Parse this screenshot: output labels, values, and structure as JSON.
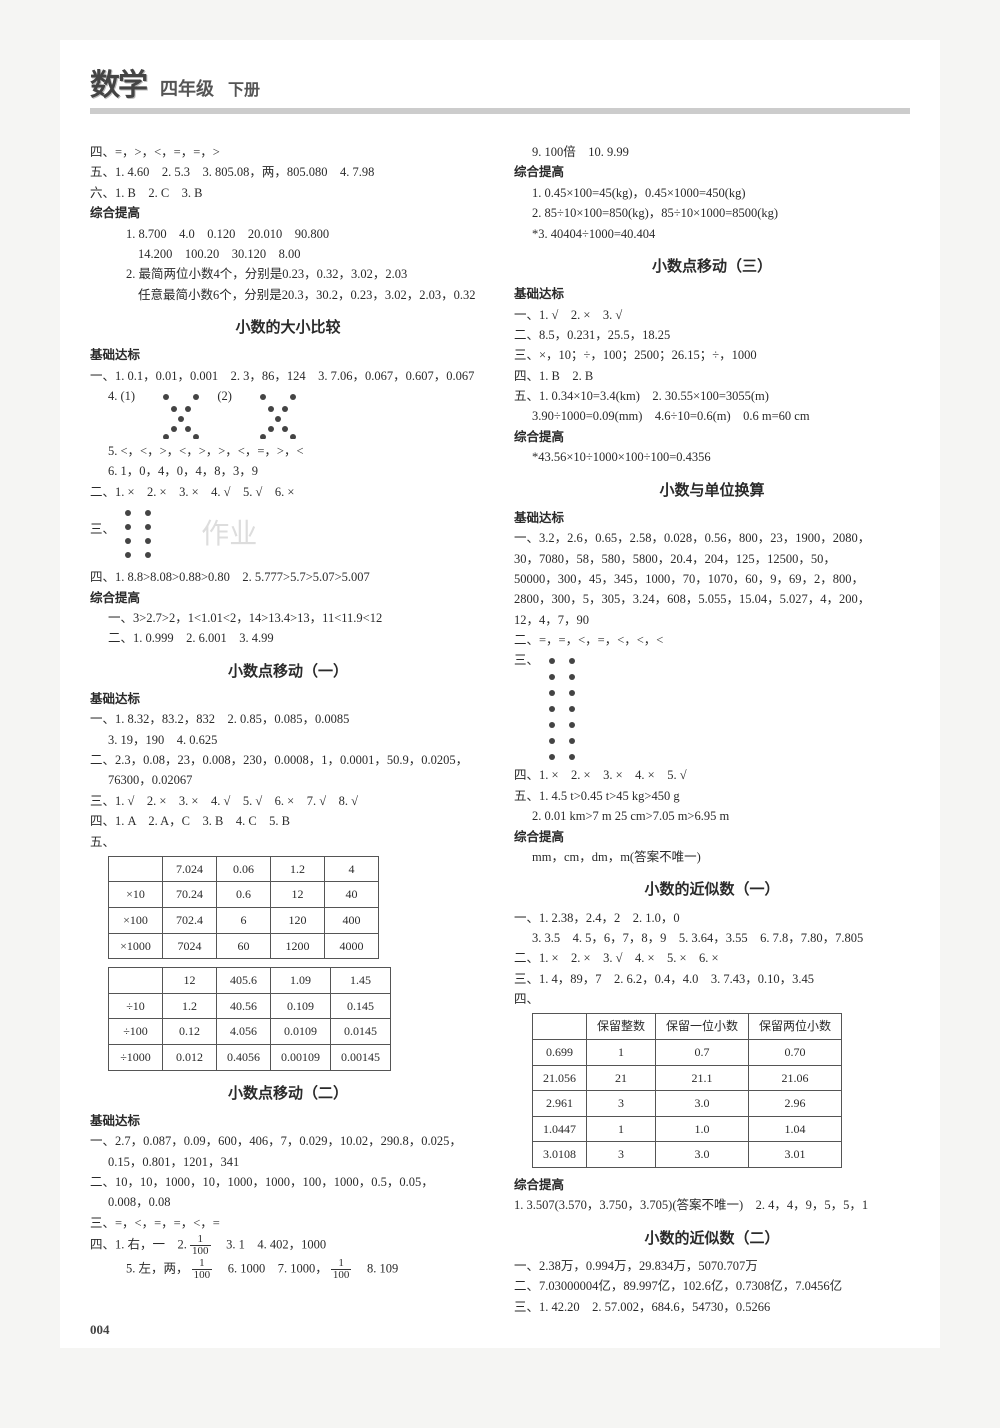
{
  "header": {
    "logo": "数学",
    "grade": "四年级",
    "vol": "下册"
  },
  "page_number": "004",
  "left": {
    "pre": {
      "l1": "四、=，>，<，=，=，>",
      "l2": "五、1. 4.60　2. 5.3　3. 805.08，两，805.080　4. 7.98",
      "l3": "六、1. B　2. C　3. B",
      "zh": "综合提高",
      "l4": "1. 8.700　4.0　0.120　20.010　90.800",
      "l5": "14.200　100.20　30.120　8.00",
      "l6": "2. 最简两位小数4个，分别是0.23，0.32，3.02，2.03",
      "l7": "任意最简小数6个，分别是20.3，30.2，0.23，3.02，2.03，0.32"
    },
    "s1": {
      "title": "小数的大小比较",
      "jc": "基础达标",
      "a1": "一、1. 0.1，0.01，0.001　2. 3，86，124　3. 7.06，0.067，0.607，0.067",
      "a2_prefix": "4. (1)",
      "a2_mid": "(2)",
      "a3": "5. <，<，>，<，>，>，<，=，>，<",
      "a4": "6. 1，0，4，0，4，8，3，9",
      "b1": "二、1. ×　2. ×　3. ×　4. √　5. √　6. ×",
      "c_prefix": "三、",
      "d1": "四、1. 8.8>8.08>0.88>0.80　2. 5.777>5.7>5.07>5.007",
      "zh": "综合提高",
      "e1": "一、3>2.7>2，1<1.01<2，14>13.4>13，11<11.9<12",
      "e2": "二、1. 0.999　2. 6.001　3. 4.99"
    },
    "s2": {
      "title": "小数点移动（一）",
      "jc": "基础达标",
      "a1": "一、1. 8.32，83.2，832　2. 0.85，0.085，0.0085",
      "a2": "3. 19，190　4. 0.625",
      "b1": "二、2.3，0.08，23，0.008，230，0.0008，1，0.0001，50.9，0.0205，",
      "b2": "76300，0.02067",
      "c1": "三、1. √　2. ×　3. ×　4. √　5. √　6. ×　7. √　8. √",
      "d1": "四、1. A　2. A，C　3. B　4. C　5. B",
      "e_prefix": "五、",
      "table_a": {
        "cols": [
          "",
          "7.024",
          "0.06",
          "1.2",
          "4"
        ],
        "rows": [
          [
            "×10",
            "70.24",
            "0.6",
            "12",
            "40"
          ],
          [
            "×100",
            "702.4",
            "6",
            "120",
            "400"
          ],
          [
            "×1000",
            "7024",
            "60",
            "1200",
            "4000"
          ]
        ]
      },
      "table_b": {
        "cols": [
          "",
          "12",
          "405.6",
          "1.09",
          "1.45"
        ],
        "rows": [
          [
            "÷10",
            "1.2",
            "40.56",
            "0.109",
            "0.145"
          ],
          [
            "÷100",
            "0.12",
            "4.056",
            "0.0109",
            "0.0145"
          ],
          [
            "÷1000",
            "0.012",
            "0.4056",
            "0.00109",
            "0.00145"
          ]
        ]
      }
    },
    "s3": {
      "title": "小数点移动（二）",
      "jc": "基础达标",
      "a1": "一、2.7，0.087，0.09，600，406，7，0.029，10.02，290.8，0.025，",
      "a2": "0.15，0.801，1201，341",
      "b1": "二、10，10，1000，10，1000，1000，100，1000，0.5，0.05，",
      "b2": "0.008，0.08",
      "c1": "三、=，<，=，=，<，=",
      "d_prefix": "四、1. 右，一　2. ",
      "d_suffix1": "　3. 1　4. 402，1000",
      "e_prefix": "5. 左，两，",
      "e_mid": "　6. 1000　7. 1000，",
      "e_suffix": "　8. 109"
    }
  },
  "right": {
    "top": {
      "l1": "9. 100倍　10. 9.99",
      "zh": "综合提高",
      "l2": "1. 0.45×100=45(kg)，0.45×1000=450(kg)",
      "l3": "2. 85÷10×100=850(kg)，85÷10×1000=8500(kg)",
      "l4": "*3. 40404÷1000=40.404"
    },
    "s1": {
      "title": "小数点移动（三）",
      "jc": "基础达标",
      "a1": "一、1. √　2. ×　3. √",
      "b1": "二、8.5，0.231，25.5，18.25",
      "c1": "三、×，10；÷，100；2500；26.15；÷，1000",
      "d1": "四、1. B　2. B",
      "e1": "五、1. 0.34×10=3.4(km)　2. 30.55×100=3055(m)",
      "e2": "3.90÷1000=0.09(mm)　4.6÷10=0.6(m)　0.6 m=60 cm",
      "zh": "综合提高",
      "f1": "*43.56×10÷1000×100÷100=0.4356"
    },
    "s2": {
      "title": "小数与单位换算",
      "jc": "基础达标",
      "a1": "一、3.2，2.6，0.65，2.58，0.028，0.56，800，23，1900，2080，",
      "a2": "30，7080，58，580，5800，20.4，204，125，12500，50，",
      "a3": "50000，300，45，345，1000，70，1070，60，9，69，2，800，",
      "a4": "2800，300，5，305，3.24，608，5.055，15.04，5.027，4，200，",
      "a5": "12，4，7，90",
      "b1": "二、=，=，<，=，<，<，<",
      "c_prefix": "三、",
      "d1": "四、1. ×　2. ×　3. ×　4. ×　5. √",
      "e1": "五、1. 4.5 t>0.45 t>45 kg>450 g",
      "e2": "2. 0.01 km>7 m 25 cm>7.05 m>6.95 m",
      "zh": "综合提高",
      "f1": "mm，cm，dm，m(答案不唯一)"
    },
    "s3": {
      "title": "小数的近似数（一）",
      "a1": "一、1. 2.38，2.4，2　2. 1.0，0",
      "a2": "3. 3.5　4. 5，6，7，8，9　5. 3.64，3.55　6. 7.8，7.80，7.805",
      "b1": "二、1. ×　2. ×　3. √　4. ×　5. ×　6. ×",
      "c1": "三、1. 4，89，7　2. 6.2，0.4，4.0　3. 7.43，0.10，3.45",
      "d_prefix": "四、",
      "table": {
        "cols": [
          "",
          "保留整数",
          "保留一位小数",
          "保留两位小数"
        ],
        "rows": [
          [
            "0.699",
            "1",
            "0.7",
            "0.70"
          ],
          [
            "21.056",
            "21",
            "21.1",
            "21.06"
          ],
          [
            "2.961",
            "3",
            "3.0",
            "2.96"
          ],
          [
            "1.0447",
            "1",
            "1.0",
            "1.04"
          ],
          [
            "3.0108",
            "3",
            "3.0",
            "3.01"
          ]
        ]
      },
      "zh": "综合提高",
      "e1": "1. 3.507(3.570，3.750，3.705)(答案不唯一)　2. 4，4，9，5，5，1"
    },
    "s4": {
      "title": "小数的近似数（二）",
      "a1": "一、2.38万，0.994万，29.834万，5070.707万",
      "b1": "二、7.03000004亿，89.997亿，102.6亿，0.7308亿，7.0456亿",
      "c1": "三、1. 42.20　2. 57.002，684.6，54730，0.5266"
    }
  },
  "dot": {
    "fill": "#444",
    "size": 4
  }
}
